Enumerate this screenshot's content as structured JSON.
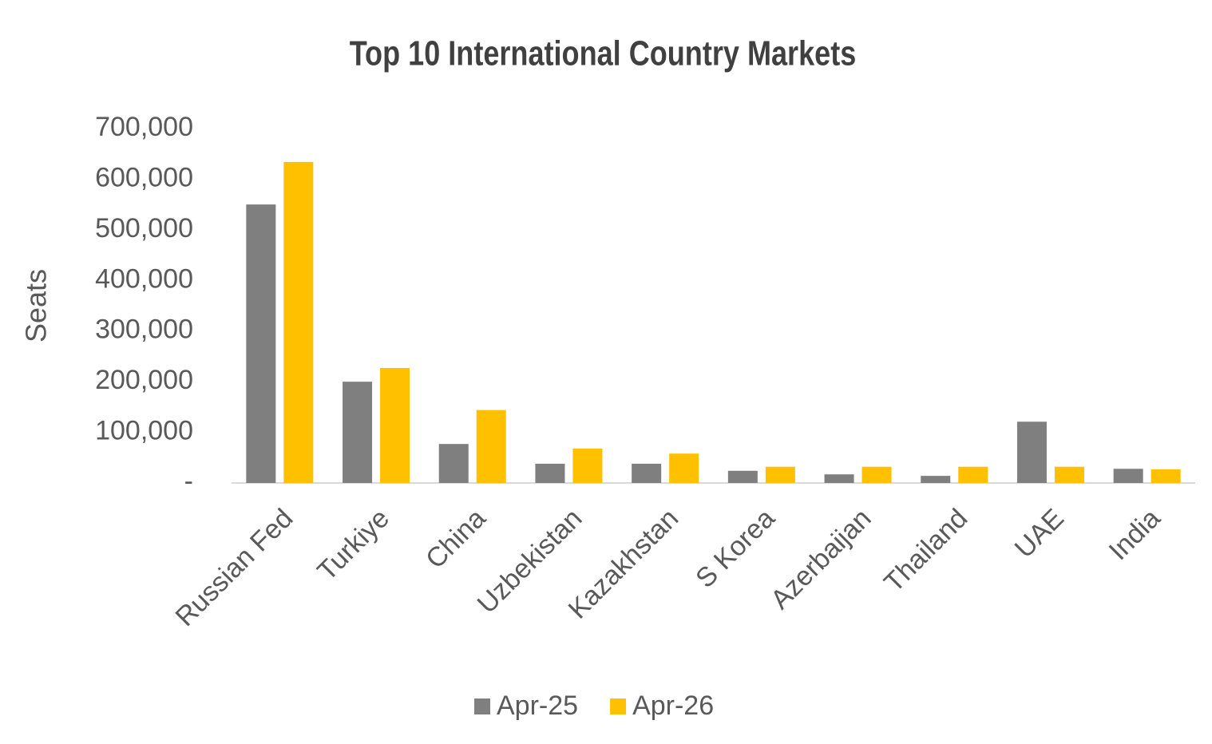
{
  "chart_data": {
    "type": "bar",
    "title": "Top 10 International Country Markets",
    "y_label": "Seats",
    "categories": [
      "Russian Fed",
      "Turkiye",
      "China",
      "Uzbekistan",
      "Kazakhstan",
      "S Korea",
      "Azerbaijan",
      "Thailand",
      "UAE",
      "India"
    ],
    "series": [
      {
        "name": "Apr-25",
        "color": "#7f7f7f",
        "values": [
          550000,
          200000,
          77000,
          38000,
          38000,
          24000,
          17000,
          14000,
          121000,
          28000
        ]
      },
      {
        "name": "Apr-26",
        "color": "#ffc000",
        "values": [
          634000,
          227000,
          144000,
          68000,
          58000,
          32000,
          32000,
          32000,
          32000,
          27000
        ]
      }
    ],
    "ylim": [
      0,
      700000
    ],
    "yticks": [
      {
        "value": 0,
        "label": "-"
      },
      {
        "value": 100000,
        "label": "100,000"
      },
      {
        "value": 200000,
        "label": "200,000"
      },
      {
        "value": 300000,
        "label": "300,000"
      },
      {
        "value": 400000,
        "label": "400,000"
      },
      {
        "value": 500000,
        "label": "500,000"
      },
      {
        "value": 600000,
        "label": "600,000"
      },
      {
        "value": 700000,
        "label": "700,000"
      }
    ],
    "grid": false,
    "legend": "bottom"
  }
}
